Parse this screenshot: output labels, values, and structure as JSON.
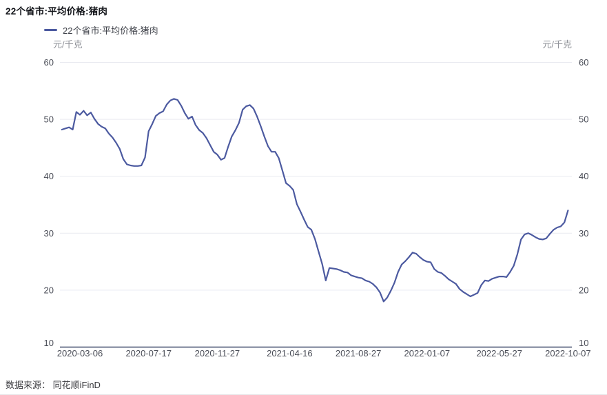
{
  "header": {
    "title": "22个省市:平均价格:猪肉"
  },
  "legend": {
    "label": "22个省市:平均价格:猪肉"
  },
  "axes": {
    "left_unit": "元/千克",
    "right_unit": "元/千克"
  },
  "footer": {
    "source": "数据来源： 同花顺iFinD"
  },
  "colors": {
    "line": "#4C5AA0",
    "grid": "#E9EAF0",
    "axis": "#3D4968",
    "tick_text": "#4A4D57",
    "unit_text": "#8E9097"
  },
  "chart_data": {
    "type": "line",
    "title": "22个省市:平均价格:猪肉",
    "ylabel": "元/千克",
    "ylim": [
      10,
      60
    ],
    "yticks": [
      10,
      20,
      30,
      40,
      50,
      60
    ],
    "grid": "horizontal",
    "legend_position": "top-left",
    "x_start_date": "2020-01-31",
    "x_interval": "weekly",
    "xtick_labels": [
      "2020-03-06",
      "2020-07-17",
      "2020-11-27",
      "2021-04-16",
      "2021-08-27",
      "2022-01-07",
      "2022-05-27",
      "2022-10-07"
    ],
    "xtick_week_index": [
      5,
      24,
      43,
      63,
      82,
      101,
      121,
      140
    ],
    "series": [
      {
        "name": "22个省市:平均价格:猪肉",
        "color": "#4C5AA0",
        "values": [
          48.2,
          48.4,
          48.6,
          48.2,
          51.3,
          50.8,
          51.5,
          50.7,
          51.2,
          50.1,
          49.2,
          48.7,
          48.4,
          47.5,
          46.8,
          45.9,
          44.8,
          43.0,
          42.1,
          41.9,
          41.8,
          41.8,
          41.9,
          43.3,
          47.9,
          49.2,
          50.6,
          51.1,
          51.4,
          52.6,
          53.3,
          53.6,
          53.4,
          52.4,
          51.1,
          50.1,
          50.5,
          49.0,
          48.1,
          47.6,
          46.7,
          45.5,
          44.3,
          43.8,
          42.9,
          43.2,
          45.2,
          47.0,
          48.1,
          49.4,
          51.7,
          52.3,
          52.5,
          51.9,
          50.5,
          48.8,
          47.0,
          45.3,
          44.3,
          44.3,
          43.2,
          41.0,
          38.8,
          38.3,
          37.6,
          35.1,
          33.8,
          32.4,
          31.1,
          30.6,
          29.0,
          26.8,
          24.6,
          21.7,
          23.9,
          23.8,
          23.7,
          23.5,
          23.2,
          23.1,
          22.6,
          22.4,
          22.2,
          22.1,
          21.7,
          21.5,
          21.1,
          20.5,
          19.6,
          18.0,
          18.7,
          19.9,
          21.3,
          23.2,
          24.5,
          25.1,
          25.8,
          26.6,
          26.4,
          25.8,
          25.3,
          25.0,
          24.9,
          23.7,
          23.2,
          23.0,
          22.5,
          21.9,
          21.5,
          21.1,
          20.2,
          19.7,
          19.3,
          18.9,
          19.2,
          19.5,
          20.9,
          21.7,
          21.6,
          22.0,
          22.2,
          22.4,
          22.4,
          22.3,
          23.2,
          24.3,
          26.3,
          28.9,
          29.8,
          30.0,
          29.7,
          29.3,
          29.0,
          28.9,
          29.1,
          29.9,
          30.6,
          31.0,
          31.2,
          31.9,
          34.0
        ]
      }
    ]
  }
}
